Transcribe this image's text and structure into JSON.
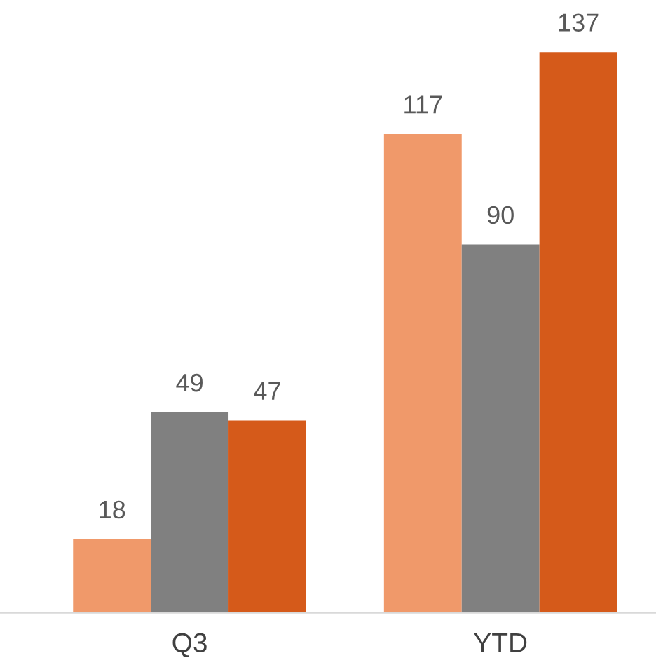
{
  "chart_data": {
    "type": "bar",
    "categories": [
      "Q3",
      "YTD"
    ],
    "series": [
      {
        "color": "#f0996a",
        "values": [
          18,
          117
        ]
      },
      {
        "color": "#808080",
        "values": [
          49,
          90
        ]
      },
      {
        "color": "#d55a1a",
        "values": [
          47,
          137
        ]
      }
    ],
    "data_labels": true,
    "grid": false
  }
}
